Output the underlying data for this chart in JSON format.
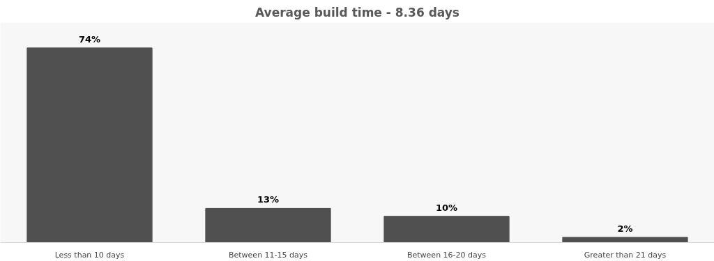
{
  "chart_data": {
    "type": "bar",
    "title": "Average build time - 8.36 days",
    "categories": [
      "Less than 10 days",
      "Between 11-15 days",
      "Between 16-20 days",
      "Greater than 21 days"
    ],
    "values": [
      74,
      13,
      10,
      2
    ],
    "color": "#505050",
    "value_labels": [
      "74%",
      "13%",
      "10%",
      "2%"
    ],
    "grid": false,
    "tick_labels": "x"
  }
}
